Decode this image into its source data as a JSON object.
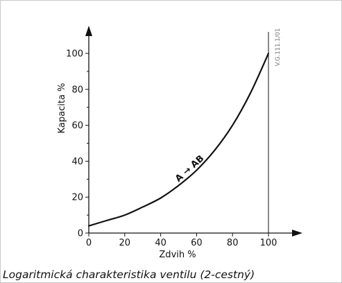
{
  "chart_data": {
    "type": "line",
    "xlabel": "Zdvih  %",
    "ylabel": "Kapacita  %",
    "xlim": [
      0,
      100
    ],
    "ylim": [
      0,
      100
    ],
    "x_ticks": [
      0,
      20,
      40,
      60,
      80,
      100
    ],
    "y_ticks": [
      0,
      20,
      40,
      60,
      80,
      100
    ],
    "grid": false,
    "series": [
      {
        "name": "A → AB",
        "x": [
          0,
          10,
          20,
          30,
          40,
          50,
          60,
          70,
          80,
          90,
          100
        ],
        "y": [
          4,
          7,
          10,
          14.5,
          19.5,
          26.5,
          35,
          46,
          60,
          78,
          100
        ]
      }
    ],
    "annotation": "A → AB",
    "code": "V.G.111.1/01",
    "caption": "Logaritmická charakteristika ventilu (2-cestný)"
  }
}
